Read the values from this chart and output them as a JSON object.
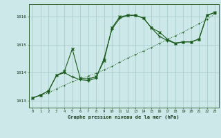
{
  "title": "Graphe pression niveau de la mer (hPa)",
  "bg_color": "#cce8e8",
  "grid_color": "#aacccc",
  "line_color": "#1a5c1a",
  "x_ticks": [
    0,
    1,
    2,
    3,
    4,
    5,
    6,
    7,
    8,
    9,
    10,
    11,
    12,
    13,
    14,
    15,
    16,
    17,
    18,
    19,
    20,
    21,
    22,
    23
  ],
  "ylim": [
    1012.75,
    1016.45
  ],
  "yticks": [
    1013,
    1014,
    1015,
    1016
  ],
  "line1": [
    1013.1,
    1013.18,
    1013.28,
    1013.42,
    1013.55,
    1013.68,
    1013.78,
    1013.88,
    1013.98,
    1014.1,
    1014.22,
    1014.38,
    1014.52,
    1014.65,
    1014.78,
    1014.9,
    1015.05,
    1015.18,
    1015.32,
    1015.45,
    1015.6,
    1015.75,
    1015.9,
    1016.1
  ],
  "line2": [
    1013.1,
    1013.2,
    1013.35,
    1013.9,
    1014.0,
    1013.85,
    1013.75,
    1013.72,
    1013.8,
    1014.5,
    1015.55,
    1015.95,
    1016.05,
    1016.05,
    1015.95,
    1015.6,
    1015.3,
    1015.15,
    1015.05,
    1015.1,
    1015.1,
    1015.2,
    1016.05,
    1016.15
  ],
  "line3": [
    1013.1,
    1013.2,
    1013.35,
    1013.9,
    1014.05,
    1014.85,
    1013.8,
    1013.78,
    1013.85,
    1014.42,
    1015.6,
    1016.0,
    1016.05,
    1016.05,
    1015.95,
    1015.6,
    1015.45,
    1015.2,
    1015.05,
    1015.1,
    1015.1,
    1015.2,
    1016.05,
    1016.15
  ]
}
